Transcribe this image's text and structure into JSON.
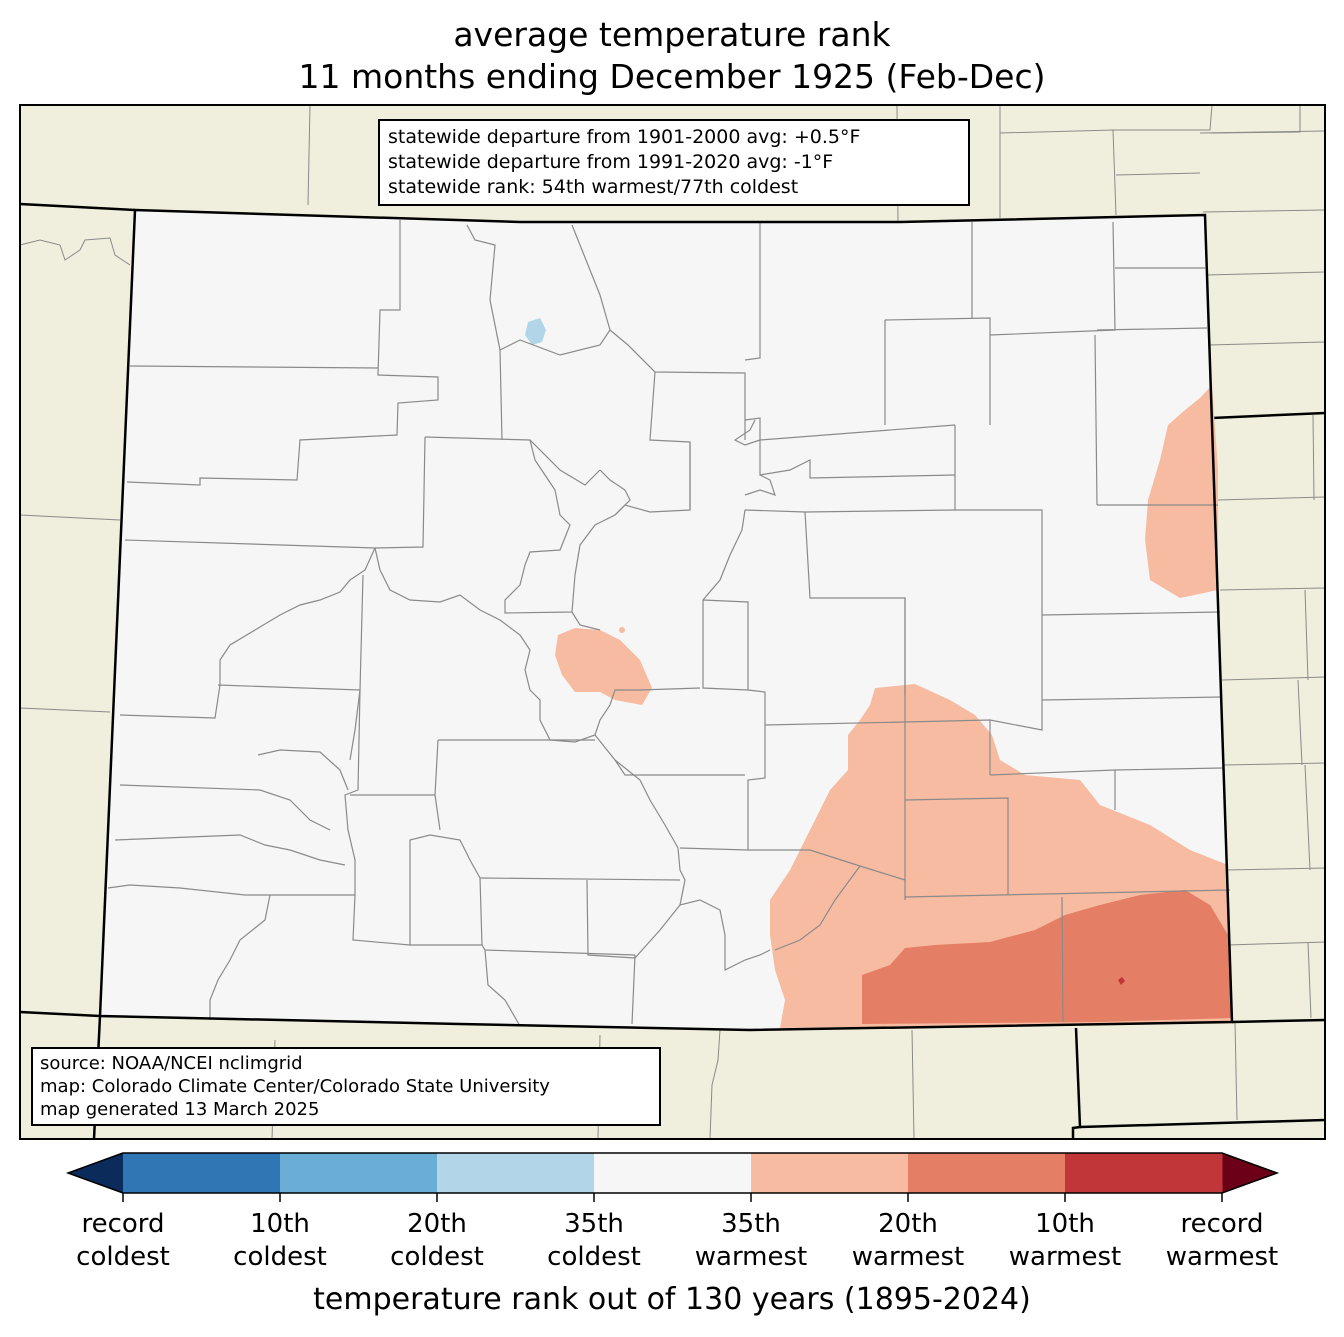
{
  "title": {
    "line1": "average temperature rank",
    "line2": "11 months ending December 1925 (Feb-Dec)"
  },
  "stats_box": {
    "line1": "statewide departure from 1901-2000 avg: +0.5°F",
    "line2": "statewide departure from 1991-2020 avg: -1°F",
    "line3": "statewide rank: 54th warmest/77th coldest"
  },
  "source_box": {
    "line1": "source: NOAA/NCEI nclimgrid",
    "line2": "map: Colorado Climate Center/Colorado State University",
    "line3": "map generated 13 March 2025"
  },
  "colorbar": {
    "title": "temperature rank out of 130 years (1895-2024)",
    "bins": [
      {
        "color": "#2f76b5"
      },
      {
        "color": "#6aadd5"
      },
      {
        "color": "#b3d5e8"
      },
      {
        "color": "#f6f6f6"
      },
      {
        "color": "#f7bba1"
      },
      {
        "color": "#e47e65"
      },
      {
        "color": "#c13638"
      }
    ],
    "extend_low_color": "#0b2c5a",
    "extend_high_color": "#6b0018",
    "ticks": [
      {
        "line1": "record",
        "line2": "coldest"
      },
      {
        "line1": "10th",
        "line2": "coldest"
      },
      {
        "line1": "20th",
        "line2": "coldest"
      },
      {
        "line1": "35th",
        "line2": "coldest"
      },
      {
        "line1": "35th",
        "line2": "warmest"
      },
      {
        "line1": "20th",
        "line2": "warmest"
      },
      {
        "line1": "10th",
        "line2": "warmest"
      },
      {
        "line1": "record",
        "line2": "warmest"
      }
    ]
  },
  "colors": {
    "land_outside": "#f0eedc",
    "state_fill": "#f6f6f6",
    "county_line": "#8a8a8a",
    "state_line": "#000000",
    "warm_35": "#f7bba1",
    "warm_20": "#e47e65",
    "warm_10": "#c13638",
    "cold_35": "#b3d5e8"
  }
}
